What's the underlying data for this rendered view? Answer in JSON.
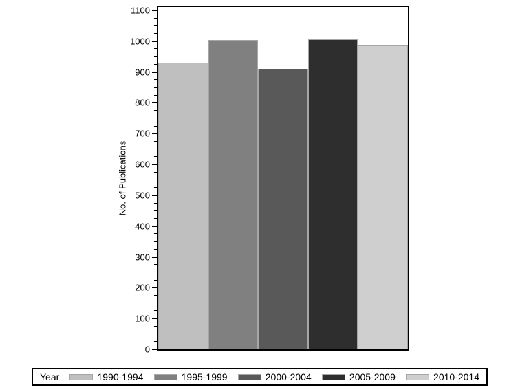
{
  "chart_data": {
    "type": "bar",
    "title": "",
    "xlabel": "",
    "ylabel": "No. of Publications",
    "categories": [
      "1990-1994",
      "1995-1999",
      "2000-2004",
      "2005-2009",
      "2010-2014"
    ],
    "values": [
      930,
      1004,
      911,
      1007,
      986
    ],
    "bar_colors": [
      "#bfbfbf",
      "#808080",
      "#595959",
      "#2e2e2e",
      "#cfcfcf"
    ],
    "bar_outline_color": "#a6a6a6",
    "ylim": [
      0,
      1100
    ],
    "y_axis_top_value": 1111,
    "y_major_ticks": [
      "0",
      "100",
      "200",
      "300",
      "400",
      "500",
      "600",
      "700",
      "800",
      "900",
      "1000",
      "1100"
    ],
    "y_minor_tick_step": 25,
    "grid": false,
    "frame_color": "#000000",
    "background": "#ffffff",
    "legend": {
      "title": "Year",
      "position": "bottom",
      "entries": [
        "1990-1994",
        "1995-1999",
        "2000-2004",
        "2005-2009",
        "2010-2014"
      ]
    }
  }
}
